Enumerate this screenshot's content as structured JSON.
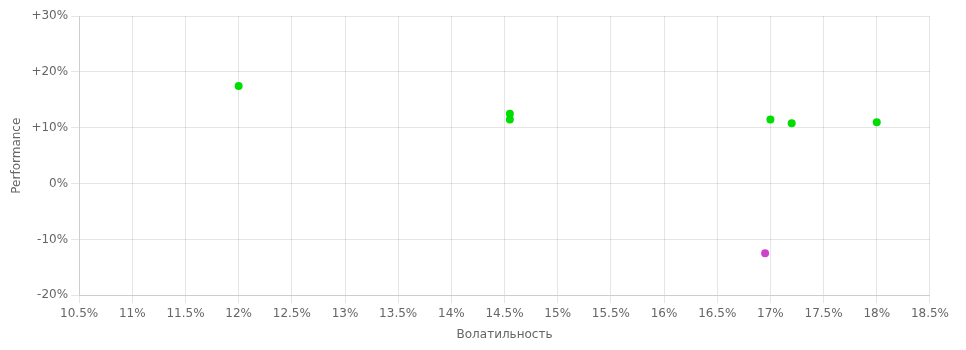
{
  "chart_data": {
    "type": "scatter",
    "xlabel": "Волатильность",
    "ylabel": "Performance",
    "x": [
      0.12,
      0.1455,
      0.1455,
      0.17,
      0.172,
      0.18,
      0.1695
    ],
    "values": [
      0.175,
      0.125,
      0.115,
      0.115,
      0.108,
      0.11,
      -0.125
    ],
    "colors": [
      "#00dd00",
      "#00dd00",
      "#00dd00",
      "#00dd00",
      "#00dd00",
      "#00dd00",
      "#cc44cc"
    ],
    "xlim": [
      0.105,
      0.185
    ],
    "ylim": [
      -0.2,
      0.3
    ],
    "xticks": [
      {
        "value": 0.105,
        "label": "10.5%"
      },
      {
        "value": 0.11,
        "label": "11%"
      },
      {
        "value": 0.115,
        "label": "11.5%"
      },
      {
        "value": 0.12,
        "label": "12%"
      },
      {
        "value": 0.125,
        "label": "12.5%"
      },
      {
        "value": 0.13,
        "label": "13%"
      },
      {
        "value": 0.135,
        "label": "13.5%"
      },
      {
        "value": 0.14,
        "label": "14%"
      },
      {
        "value": 0.145,
        "label": "14.5%"
      },
      {
        "value": 0.15,
        "label": "15%"
      },
      {
        "value": 0.155,
        "label": "15.5%"
      },
      {
        "value": 0.16,
        "label": "16%"
      },
      {
        "value": 0.165,
        "label": "16.5%"
      },
      {
        "value": 0.17,
        "label": "17%"
      },
      {
        "value": 0.175,
        "label": "17.5%"
      },
      {
        "value": 0.18,
        "label": "18%"
      },
      {
        "value": 0.185,
        "label": "18.5%"
      }
    ],
    "yticks": [
      {
        "value": -0.2,
        "label": "-20%"
      },
      {
        "value": -0.1,
        "label": "-10%"
      },
      {
        "value": 0.0,
        "label": "0%"
      },
      {
        "value": 0.1,
        "label": "+10%"
      },
      {
        "value": 0.2,
        "label": "+20%"
      },
      {
        "value": 0.3,
        "label": "+30%"
      }
    ],
    "grid": true
  }
}
